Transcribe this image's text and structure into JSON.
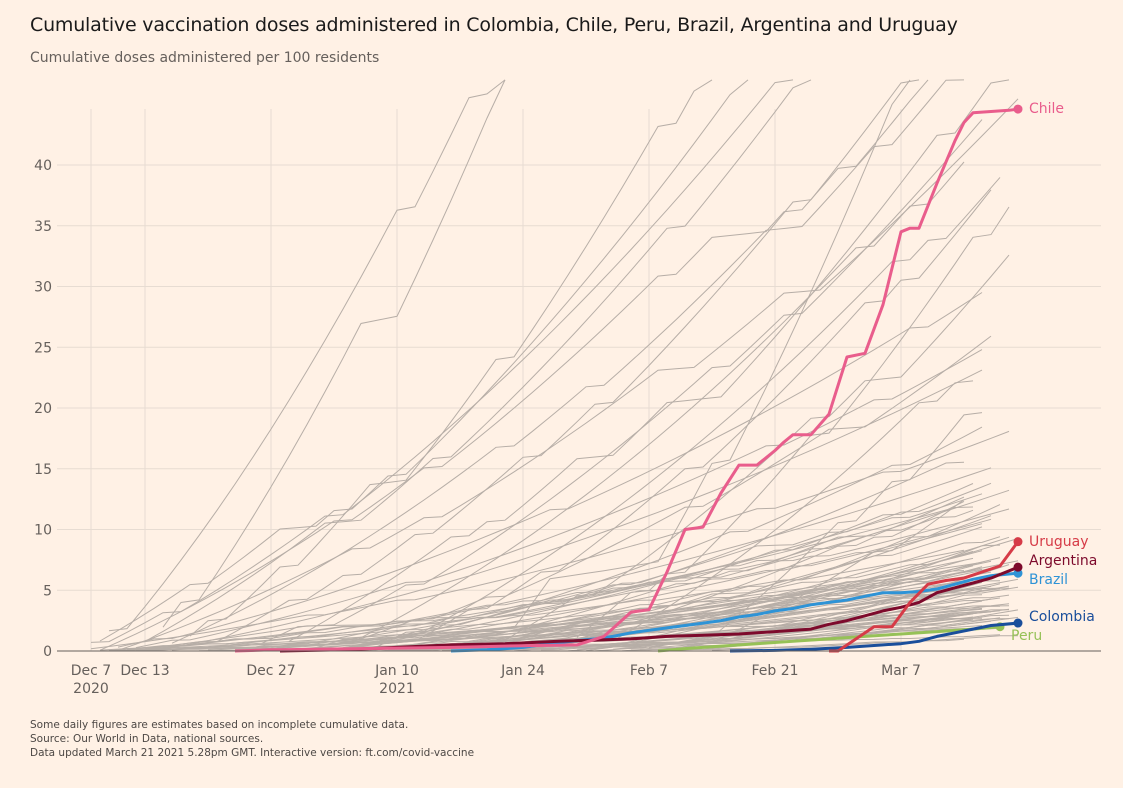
{
  "header": {
    "title": "Cumulative vaccination doses administered in Colombia, Chile, Peru, Brazil, Argentina and Uruguay",
    "subtitle": "Cumulative doses administered per 100 residents"
  },
  "notes": [
    "Some daily figures are estimates based on incomplete cumulative data.",
    "Source: Our World in Data, national sources.",
    "Data updated March 21 2021 5.28pm GMT. Interactive version: ft.com/covid-vaccine"
  ],
  "chart_data": {
    "type": "line",
    "title": "Cumulative vaccination doses administered in Colombia, Chile, Peru, Brazil, Argentina and Uruguay",
    "subtitle": "Cumulative doses administered per 100 residents",
    "xlabel": "",
    "ylabel": "Cumulative doses per 100 residents",
    "x_unit": "days since 2020-12-07",
    "xlim": [
      0,
      113
    ],
    "ylim": [
      0,
      45
    ],
    "grid": true,
    "y_ticks": [
      0,
      5,
      10,
      15,
      20,
      25,
      30,
      35,
      40
    ],
    "x_ticks": [
      {
        "day": 0,
        "label": "Dec 7",
        "sublabel": "2020"
      },
      {
        "day": 6,
        "label": "Dec 13",
        "sublabel": ""
      },
      {
        "day": 20,
        "label": "Dec 27",
        "sublabel": ""
      },
      {
        "day": 34,
        "label": "Jan 10",
        "sublabel": "2021"
      },
      {
        "day": 48,
        "label": "Jan 24",
        "sublabel": ""
      },
      {
        "day": 62,
        "label": "Feb 7",
        "sublabel": ""
      },
      {
        "day": 76,
        "label": "Feb 21",
        "sublabel": ""
      },
      {
        "day": 90,
        "label": "Mar 7",
        "sublabel": ""
      }
    ],
    "background_series_note": "Other countries shown in grey (unlabelled)",
    "background_color": "#b7aea7",
    "series": [
      {
        "name": "Chile",
        "color": "#e95d8c",
        "x": [
          16,
          20,
          21,
          30,
          40,
          46,
          54,
          57,
          60,
          62,
          64,
          66,
          68,
          70,
          72,
          74,
          76,
          77,
          78,
          80,
          82,
          84,
          86,
          88,
          90,
          91,
          92,
          94,
          96,
          97,
          98,
          100,
          102,
          103
        ],
        "y": [
          0,
          0.1,
          0.1,
          0.2,
          0.3,
          0.4,
          0.5,
          1.2,
          3.2,
          3.4,
          6.5,
          10.0,
          10.2,
          13.0,
          15.3,
          15.3,
          16.5,
          17.2,
          17.8,
          17.8,
          19.5,
          24.2,
          24.5,
          28.5,
          34.5,
          34.8,
          34.8,
          38.5,
          42.0,
          43.5,
          44.3,
          44.4,
          44.5,
          44.6
        ]
      },
      {
        "name": "Uruguay",
        "color": "#d63b47",
        "x": [
          82,
          83,
          85,
          87,
          89,
          91,
          93,
          95,
          97,
          99,
          101,
          103
        ],
        "y": [
          0,
          0,
          1.0,
          2.0,
          2.0,
          4.0,
          5.5,
          5.8,
          6.0,
          6.5,
          7.0,
          9.0
        ]
      },
      {
        "name": "Argentina",
        "color": "#7d0a2c",
        "x": [
          21,
          28,
          34,
          40,
          46,
          52,
          56,
          60,
          64,
          68,
          72,
          76,
          80,
          82,
          84,
          86,
          88,
          90,
          92,
          94,
          96,
          98,
          100,
          103
        ],
        "y": [
          0,
          0.1,
          0.3,
          0.5,
          0.6,
          0.8,
          0.9,
          1.0,
          1.2,
          1.3,
          1.4,
          1.6,
          1.8,
          2.2,
          2.5,
          2.9,
          3.3,
          3.6,
          4.0,
          4.8,
          5.2,
          5.6,
          6.0,
          6.9
        ]
      },
      {
        "name": "Brazil",
        "color": "#2e93d6",
        "x": [
          40,
          44,
          48,
          52,
          56,
          58,
          60,
          62,
          64,
          66,
          68,
          70,
          72,
          74,
          76,
          78,
          80,
          82,
          84,
          86,
          88,
          90,
          92,
          94,
          96,
          98,
          100,
          103
        ],
        "y": [
          0,
          0.1,
          0.3,
          0.7,
          1.0,
          1.2,
          1.5,
          1.7,
          1.9,
          2.1,
          2.3,
          2.5,
          2.8,
          3.0,
          3.3,
          3.5,
          3.8,
          4.0,
          4.2,
          4.5,
          4.8,
          4.8,
          4.9,
          5.1,
          5.5,
          5.9,
          6.2,
          6.4
        ]
      },
      {
        "name": "Colombia",
        "color": "#1a4e9b",
        "x": [
          71,
          76,
          80,
          84,
          88,
          90,
          92,
          94,
          96,
          98,
          100,
          103
        ],
        "y": [
          0,
          0.05,
          0.15,
          0.3,
          0.5,
          0.6,
          0.8,
          1.2,
          1.5,
          1.8,
          2.1,
          2.3
        ]
      },
      {
        "name": "Peru",
        "color": "#96c157",
        "x": [
          63,
          66,
          70,
          74,
          78,
          82,
          86,
          90,
          94,
          98,
          101
        ],
        "y": [
          0,
          0.2,
          0.4,
          0.6,
          0.8,
          1.0,
          1.2,
          1.4,
          1.6,
          1.8,
          2.0
        ]
      }
    ]
  }
}
